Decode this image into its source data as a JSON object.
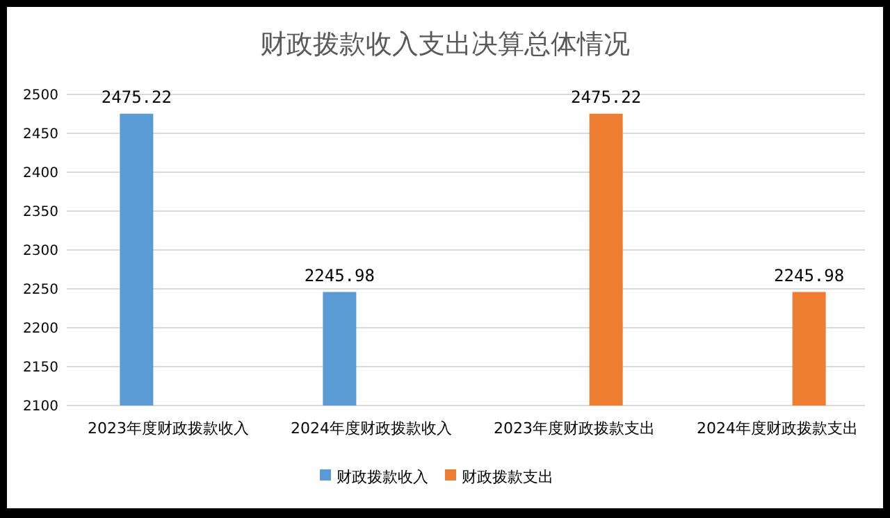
{
  "chart_data": {
    "type": "bar",
    "title": "财政拨款收入支出决算总体情况",
    "categories": [
      "2023年度财政拨款收入",
      "2024年度财政拨款收入",
      "2023年度财政拨款支出",
      "2024年度财政拨款支出"
    ],
    "series": [
      {
        "name": "财政拨款收入",
        "color": "#5b9bd5",
        "values": [
          2475.22,
          2245.98,
          null,
          null
        ]
      },
      {
        "name": "财政拨款支出",
        "color": "#ed7d31",
        "values": [
          null,
          null,
          2475.22,
          2245.98
        ]
      }
    ],
    "ylim": [
      2100,
      2500
    ],
    "yticks": [
      2100,
      2150,
      2200,
      2250,
      2300,
      2350,
      2400,
      2450,
      2500
    ],
    "grid": "y",
    "legend": "bottom",
    "data_labels": true
  }
}
